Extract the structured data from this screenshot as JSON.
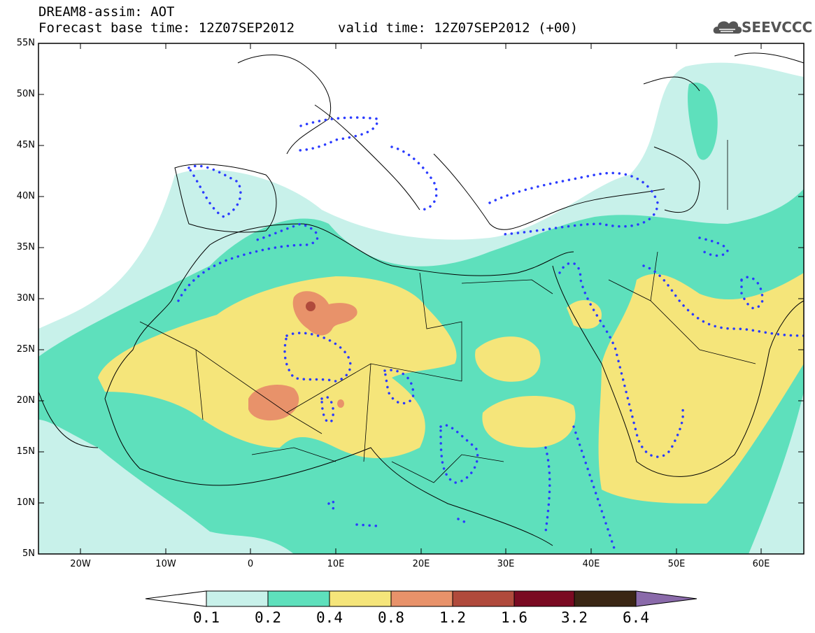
{
  "header": {
    "title": "DREAM8-assim: AOT",
    "base_time": "Forecast base time: 12Z07SEP2012",
    "valid_time": "valid time: 12Z07SEP2012 (+00)"
  },
  "logo": {
    "text": "SEEVCCC",
    "icon": "cloud-icon"
  },
  "map": {
    "lat_labels": [
      "55N",
      "50N",
      "45N",
      "40N",
      "35N",
      "30N",
      "25N",
      "20N",
      "15N",
      "10N",
      "5N"
    ],
    "lon_labels": [
      "20W",
      "10W",
      "0",
      "10E",
      "20E",
      "30E",
      "40E",
      "50E",
      "60E"
    ],
    "colors": {
      "c01": "#c8f1ea",
      "c02": "#5ee0bc",
      "c04": "#f5e57a",
      "c08": "#e8926a",
      "c12": "#b04a3c",
      "c16": "#7a0a22",
      "c32": "#3a2614",
      "c64": "#8a6aaa",
      "contour": "#2b3bff"
    }
  },
  "colorbar": {
    "labels": [
      "0.1",
      "0.2",
      "0.4",
      "0.8",
      "1.2",
      "1.6",
      "3.2",
      "6.4"
    ],
    "colors": [
      "#c8f1ea",
      "#5ee0bc",
      "#f5e57a",
      "#e8926a",
      "#b04a3c",
      "#7a0a22",
      "#3a2614"
    ],
    "over_color": "#8a6aaa",
    "under_color": "#ffffff"
  }
}
